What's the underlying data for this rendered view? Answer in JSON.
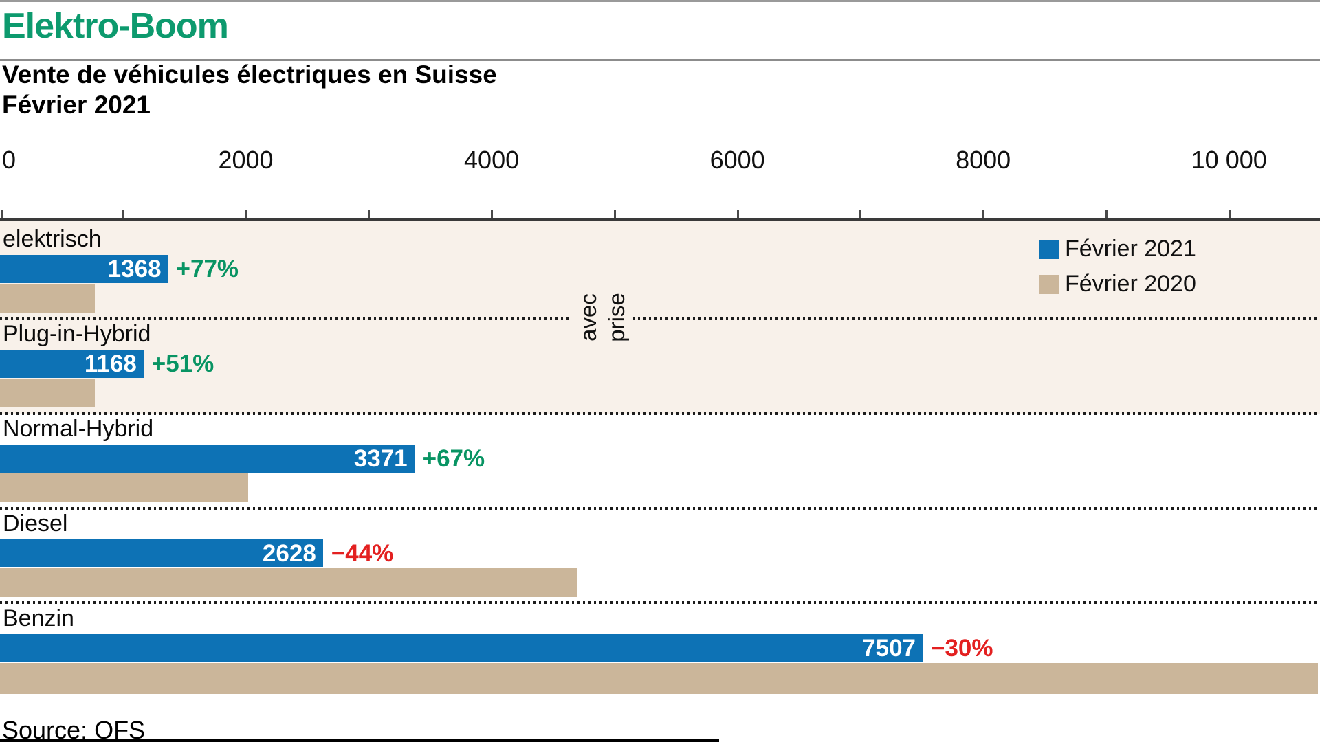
{
  "header": {
    "title": "Elektro-Boom",
    "subtitle_line1": "Vente de véhicules électriques en Suisse",
    "subtitle_line2": "Février 2021"
  },
  "chart_data": {
    "type": "bar",
    "orientation": "horizontal",
    "title": "Vente de véhicules électriques en Suisse — Février 2021",
    "xlim": [
      0,
      10740
    ],
    "x_axis": {
      "min": 0,
      "max": 10740,
      "tick_values": [
        0,
        1000,
        2000,
        3000,
        4000,
        5000,
        6000,
        7000,
        8000,
        9000,
        10000
      ],
      "tick_labels": [
        {
          "value": 0,
          "label": "0"
        },
        {
          "value": 2000,
          "label": "2000"
        },
        {
          "value": 4000,
          "label": "4000"
        },
        {
          "value": 6000,
          "label": "6000"
        },
        {
          "value": 8000,
          "label": "8000"
        },
        {
          "value": 10000,
          "label": "10 000"
        }
      ],
      "grid": false
    },
    "series": [
      {
        "name": "Février 2021",
        "color": "#0d72b5"
      },
      {
        "name": "Février 2020",
        "color": "#cbb69a"
      }
    ],
    "categories": [
      "elektrisch",
      "Plug-in-Hybrid",
      "Normal-Hybrid",
      "Diesel",
      "Benzin"
    ],
    "rows": [
      {
        "label": "elektrisch",
        "value_2021": 1368,
        "value_2020_estimated": 773,
        "value_label": "1368",
        "change": "+77%",
        "change_color": "#089463"
      },
      {
        "label": "Plug-in-Hybrid",
        "value_2021": 1168,
        "value_2020_estimated": 774,
        "value_label": "1168",
        "change": "+51%",
        "change_color": "#089463"
      },
      {
        "label": "Normal-Hybrid",
        "value_2021": 3371,
        "value_2020_estimated": 2019,
        "value_label": "3371",
        "change": "+67%",
        "change_color": "#089463"
      },
      {
        "label": "Diesel",
        "value_2021": 2628,
        "value_2020_estimated": 4693,
        "value_label": "2628",
        "change": "−44%",
        "change_color": "#e32020"
      },
      {
        "label": "Benzin",
        "value_2021": 7507,
        "value_2020_estimated": 10724,
        "value_label": "7507",
        "change": "−30%",
        "change_color": "#e32020"
      }
    ],
    "group_annotation": {
      "line1": "avec",
      "line2": "prise",
      "applies_to": [
        "elektrisch",
        "Plug-in-Hybrid"
      ]
    },
    "legend_position": "top-right"
  },
  "legend": {
    "items": [
      {
        "label": "Février 2021",
        "color": "#0d72b5"
      },
      {
        "label": "Février 2020",
        "color": "#cbb69a"
      }
    ]
  },
  "footer": {
    "source": "Source: OFS"
  },
  "colors": {
    "accent_green": "#0d9a6e",
    "bar_2021_blue": "#0d72b5",
    "bar_2020_tan": "#cbb69a",
    "band_beige": "#f8f1ea",
    "positive_green": "#089463",
    "negative_red": "#e32020"
  }
}
